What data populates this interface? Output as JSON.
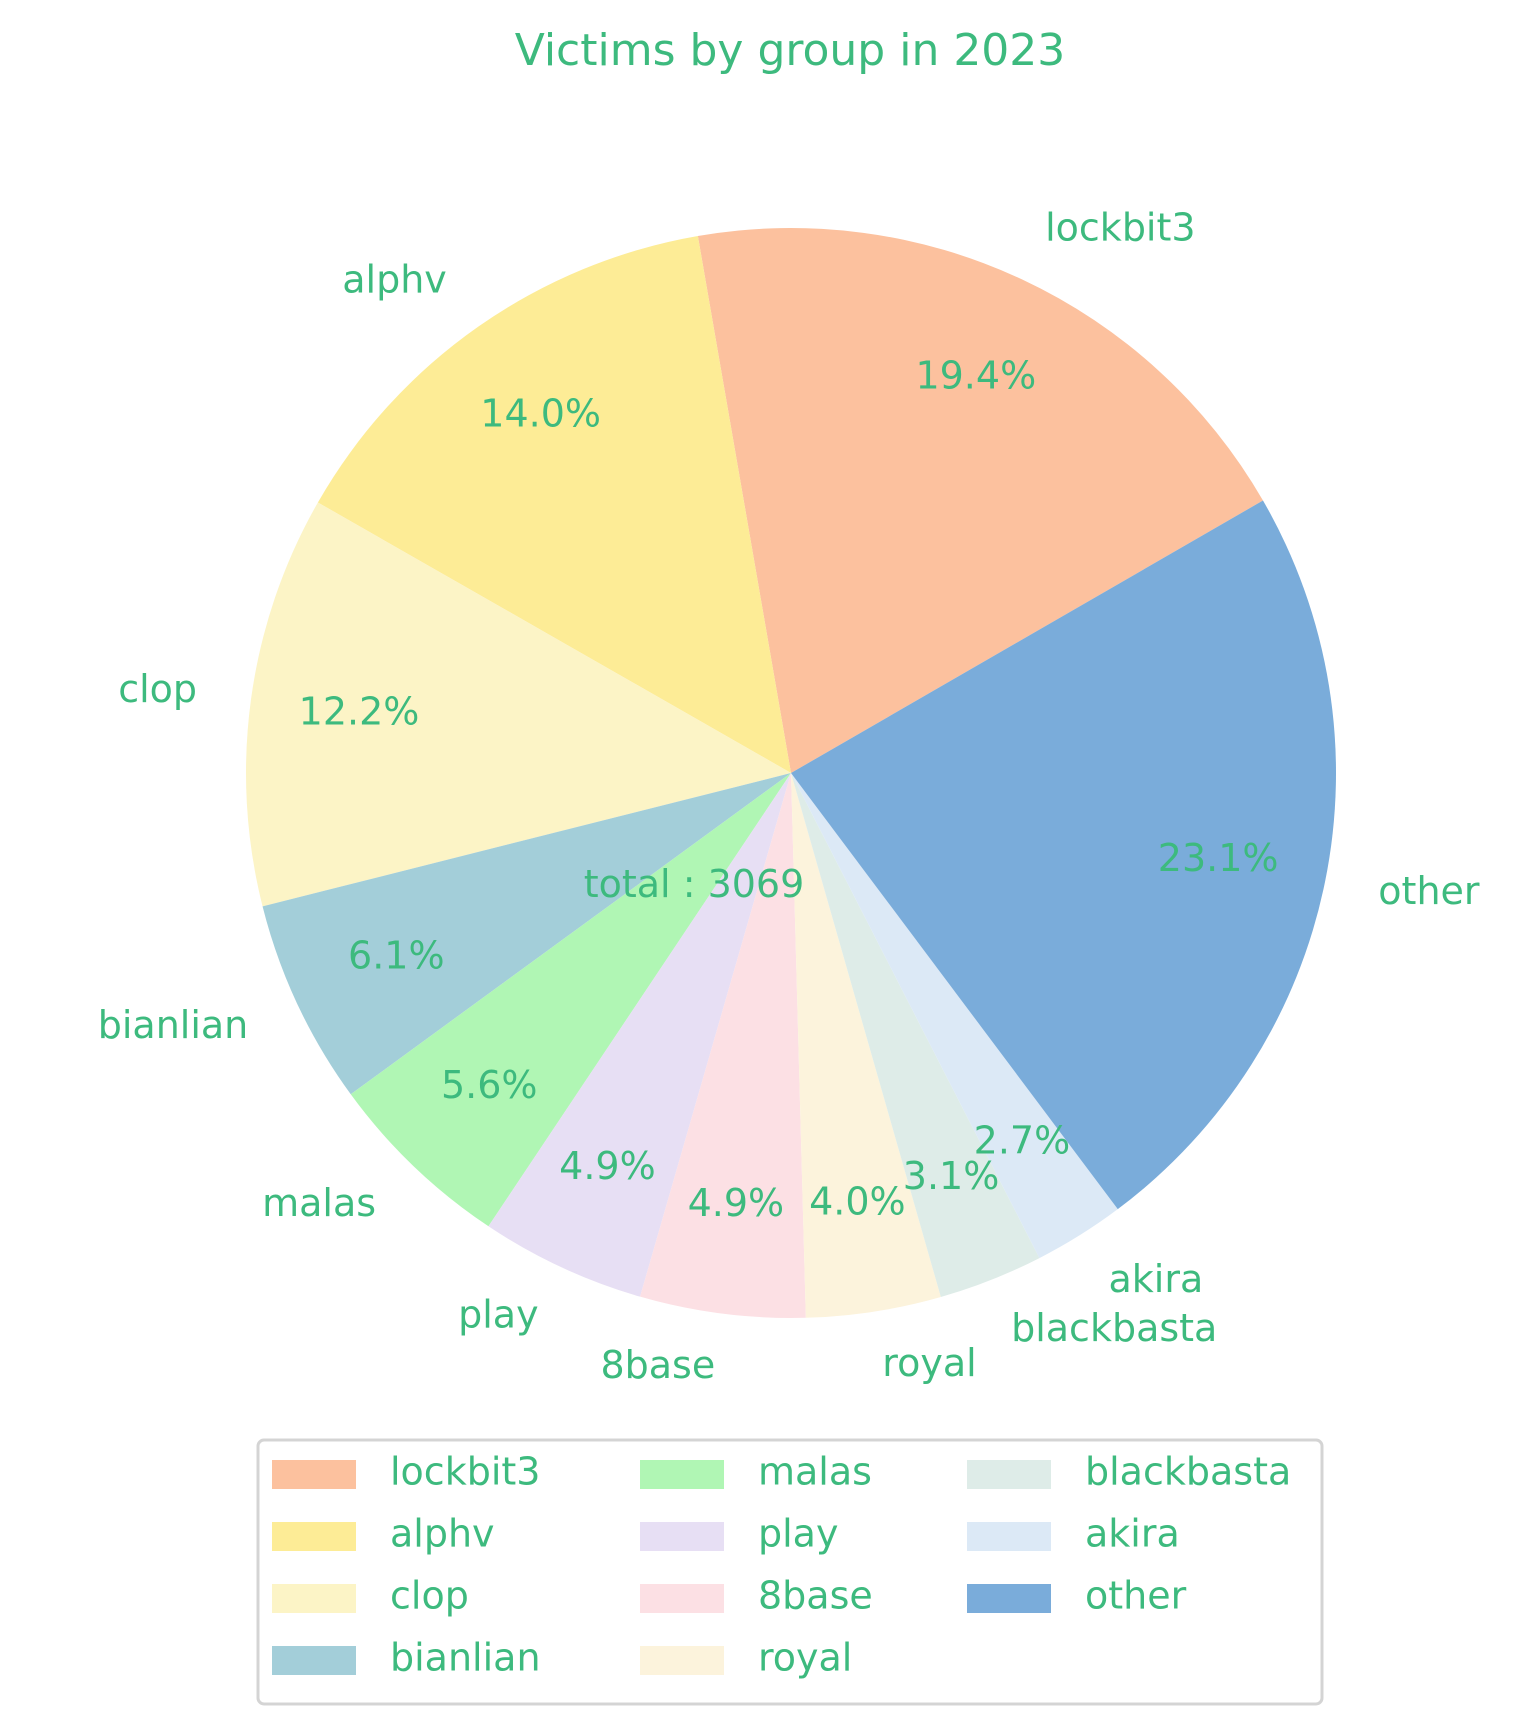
{
  "chart_data": {
    "type": "pie",
    "title": "Victims by group in 2023",
    "center_text": "total : 3069",
    "text_color": "#3dba7e",
    "legend_placement": "bottom-center",
    "legend_columns": 3,
    "start_angle_deg": 30,
    "direction": "counterclockwise",
    "slices": [
      {
        "label": "lockbit3",
        "percent": 19.4,
        "pct_label": "19.4%",
        "color": "#fcc19e"
      },
      {
        "label": "alphv",
        "percent": 14.0,
        "pct_label": "14.0%",
        "color": "#fdec96"
      },
      {
        "label": "clop",
        "percent": 12.2,
        "pct_label": "12.2%",
        "color": "#fcf4c6"
      },
      {
        "label": "bianlian",
        "percent": 6.1,
        "pct_label": "6.1%",
        "color": "#a3ced9"
      },
      {
        "label": "malas",
        "percent": 5.6,
        "pct_label": "5.6%",
        "color": "#b0f6b4"
      },
      {
        "label": "play",
        "percent": 4.9,
        "pct_label": "4.9%",
        "color": "#e7dff4"
      },
      {
        "label": "8base",
        "percent": 4.9,
        "pct_label": "4.9%",
        "color": "#fce0e4"
      },
      {
        "label": "royal",
        "percent": 4.0,
        "pct_label": "4.0%",
        "color": "#fcf3dc"
      },
      {
        "label": "blackbasta",
        "percent": 3.1,
        "pct_label": "3.1%",
        "color": "#deece8"
      },
      {
        "label": "akira",
        "percent": 2.7,
        "pct_label": "2.7%",
        "color": "#dce9f6"
      },
      {
        "label": "other",
        "percent": 23.1,
        "pct_label": "23.1%",
        "color": "#7aacda"
      }
    ]
  }
}
